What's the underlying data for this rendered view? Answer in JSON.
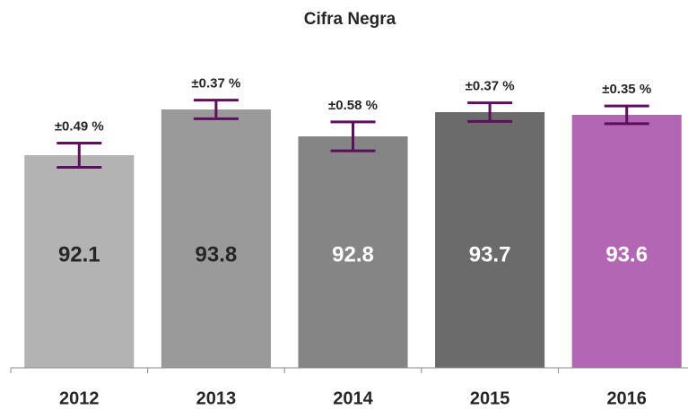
{
  "chart_data": {
    "type": "bar",
    "title": "Cifra Negra",
    "categories": [
      "2012",
      "2013",
      "2014",
      "2015",
      "2016"
    ],
    "values": [
      92.1,
      93.8,
      92.8,
      93.7,
      93.6
    ],
    "errors": [
      0.49,
      0.37,
      0.58,
      0.37,
      0.35
    ],
    "error_labels": [
      "±0.49 %",
      "±0.37 %",
      "±0.58 %",
      "±0.37 %",
      "±0.35 %"
    ],
    "colors": [
      "#b3b3b3",
      "#9a9a9a",
      "#858585",
      "#6b6b6b",
      "#b366b3"
    ],
    "label_colors": [
      "#262626",
      "#262626",
      "#ffffff",
      "#ffffff",
      "#ffffff"
    ],
    "error_color": "#5e0e5e",
    "ylim": [
      84.2,
      96
    ]
  }
}
